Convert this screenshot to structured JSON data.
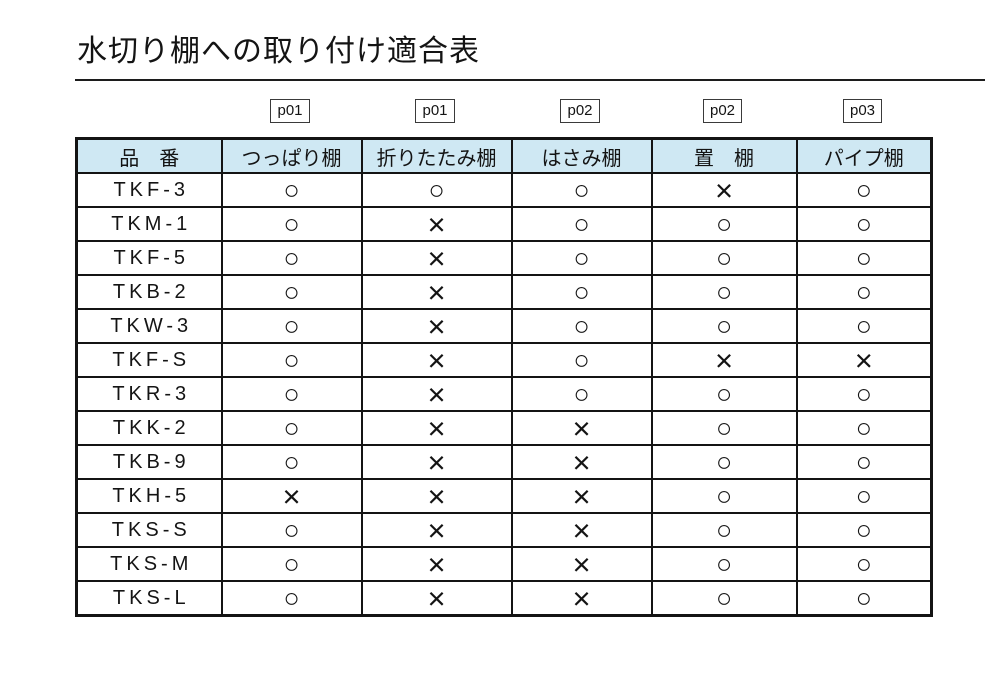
{
  "page": {
    "title": "水切り棚への取り付け適合表"
  },
  "page_refs": [
    "p01",
    "p01",
    "p02",
    "p02",
    "p03"
  ],
  "table": {
    "headers": [
      "品　番",
      "つっぱり棚",
      "折りたたみ棚",
      "はさみ棚",
      "置　棚",
      "パイプ棚"
    ],
    "rows": [
      {
        "model": "TKF-3",
        "marks": [
          "○",
          "○",
          "○",
          "×",
          "○"
        ]
      },
      {
        "model": "TKM-1",
        "marks": [
          "○",
          "×",
          "○",
          "○",
          "○"
        ]
      },
      {
        "model": "TKF-5",
        "marks": [
          "○",
          "×",
          "○",
          "○",
          "○"
        ]
      },
      {
        "model": "TKB-2",
        "marks": [
          "○",
          "×",
          "○",
          "○",
          "○"
        ]
      },
      {
        "model": "TKW-3",
        "marks": [
          "○",
          "×",
          "○",
          "○",
          "○"
        ]
      },
      {
        "model": "TKF-S",
        "marks": [
          "○",
          "×",
          "○",
          "×",
          "×"
        ]
      },
      {
        "model": "TKR-3",
        "marks": [
          "○",
          "×",
          "○",
          "○",
          "○"
        ]
      },
      {
        "model": "TKK-2",
        "marks": [
          "○",
          "×",
          "×",
          "○",
          "○"
        ]
      },
      {
        "model": "TKB-9",
        "marks": [
          "○",
          "×",
          "×",
          "○",
          "○"
        ]
      },
      {
        "model": "TKH-5",
        "marks": [
          "×",
          "×",
          "×",
          "○",
          "○"
        ]
      },
      {
        "model": "TKS-S",
        "marks": [
          "○",
          "×",
          "×",
          "○",
          "○"
        ]
      },
      {
        "model": "TKS-M",
        "marks": [
          "○",
          "×",
          "×",
          "○",
          "○"
        ]
      },
      {
        "model": "TKS-L",
        "marks": [
          "○",
          "×",
          "×",
          "○",
          "○"
        ]
      }
    ]
  },
  "colors": {
    "header_bg": "#cfe8f3",
    "border": "#141414"
  }
}
